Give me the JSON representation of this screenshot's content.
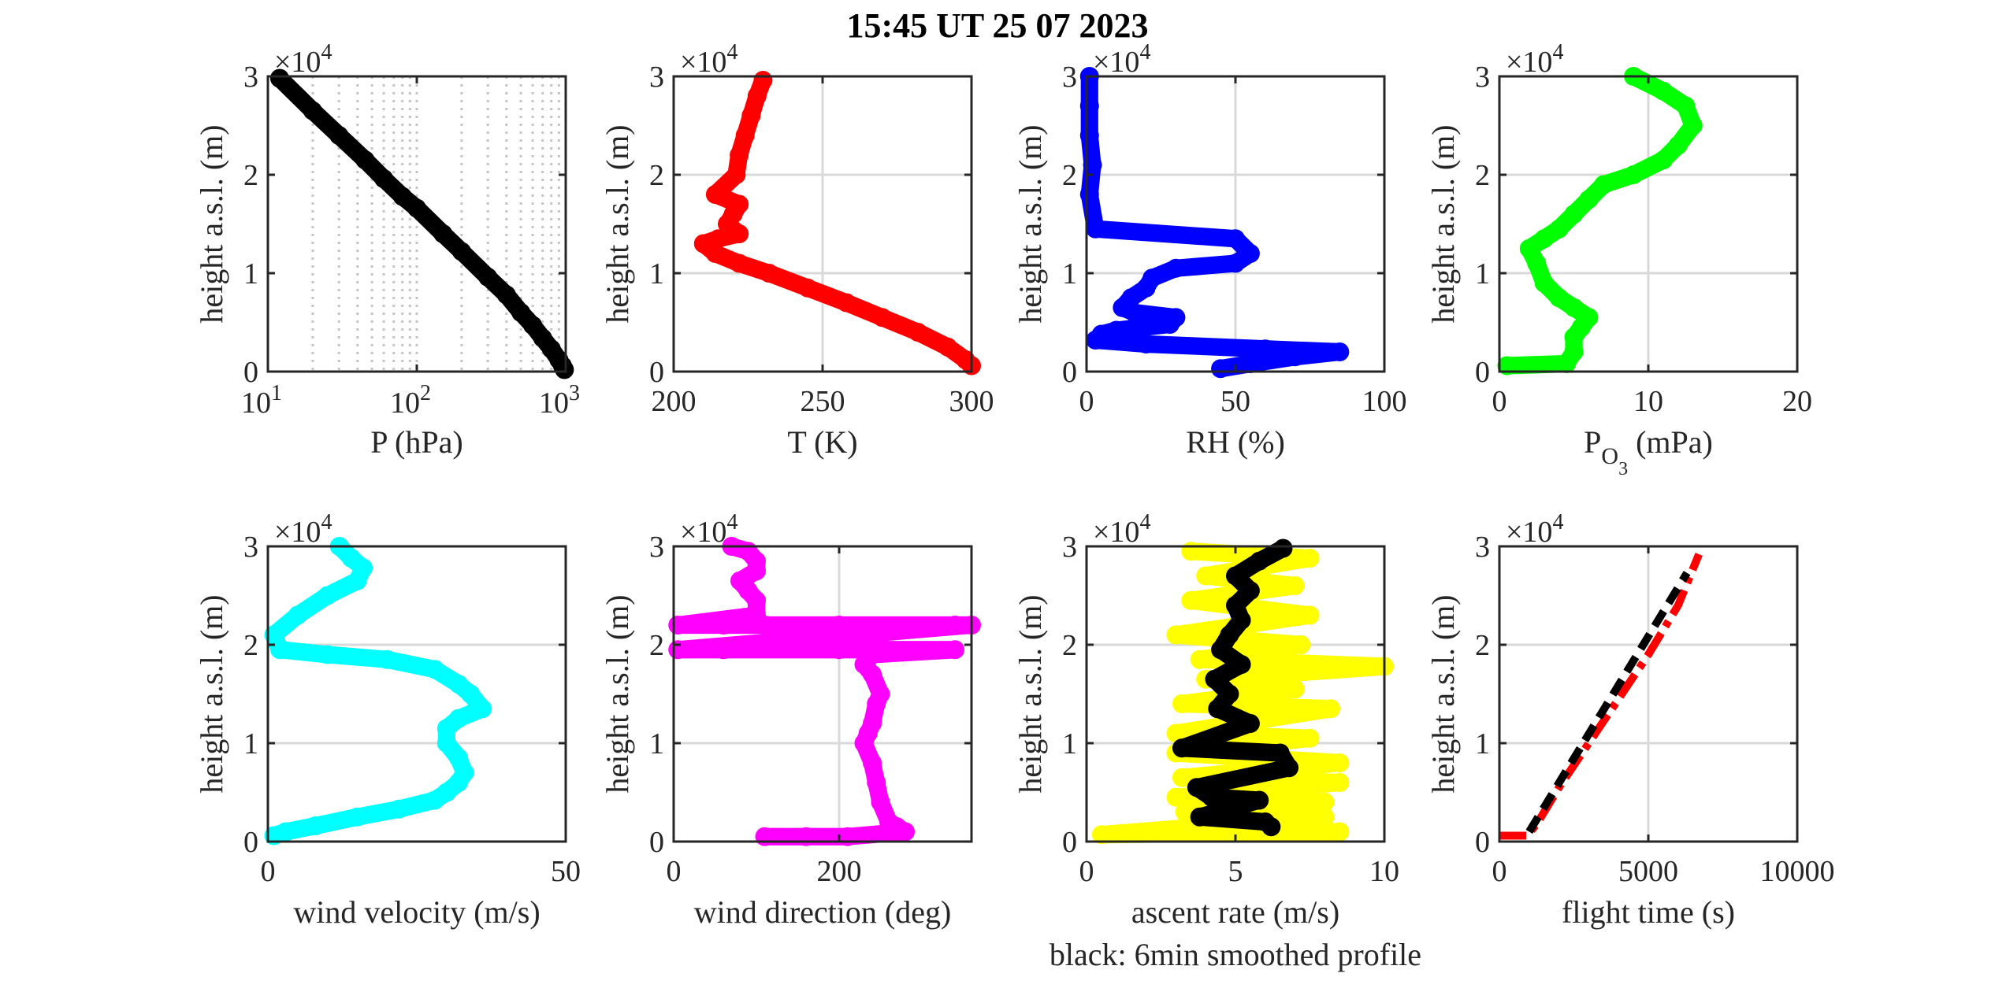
{
  "title": "15:45 UT  25 07 2023",
  "note": "black: 6min smoothed profile",
  "exponent": {
    "base": "×10",
    "power": "4"
  },
  "chart_data": [
    {
      "id": "pressure",
      "type": "scatter",
      "xlabel": "P (hPa)",
      "ylabel": "height a.s.l. (m)",
      "xscale": "log",
      "xlim": [
        10,
        1000
      ],
      "ylim": [
        0,
        30000
      ],
      "xticks": [
        {
          "v": 10,
          "b": "10",
          "e": "1"
        },
        {
          "v": 100,
          "b": "10",
          "e": "2"
        },
        {
          "v": 1000,
          "b": "10",
          "e": "3"
        }
      ],
      "yticks": [
        {
          "v": 0,
          "l": "0"
        },
        {
          "v": 10000,
          "l": "1"
        },
        {
          "v": 20000,
          "l": "2"
        },
        {
          "v": 30000,
          "l": "3"
        }
      ],
      "grid": "log-minor-dotted",
      "series": [
        {
          "color": "#000000",
          "marker_size": 12,
          "x": [
            12,
            20,
            30,
            45,
            60,
            80,
            100,
            150,
            200,
            300,
            400,
            500,
            600,
            700,
            800,
            900,
            950,
            980
          ],
          "y": [
            29800,
            26500,
            24000,
            21500,
            19600,
            17800,
            16600,
            14000,
            12200,
            9600,
            7800,
            6000,
            4700,
            3400,
            2300,
            1200,
            600,
            200
          ]
        }
      ]
    },
    {
      "id": "temperature",
      "type": "scatter",
      "xlabel": "T (K)",
      "ylabel": "height a.s.l. (m)",
      "xlim": [
        200,
        300
      ],
      "ylim": [
        0,
        30000
      ],
      "xticks": [
        {
          "v": 200,
          "l": "200"
        },
        {
          "v": 250,
          "l": "250"
        },
        {
          "v": 300,
          "l": "300"
        }
      ],
      "yticks": [
        {
          "v": 0,
          "l": "0"
        },
        {
          "v": 10000,
          "l": "1"
        },
        {
          "v": 20000,
          "l": "2"
        },
        {
          "v": 30000,
          "l": "3"
        }
      ],
      "grid": "major",
      "series": [
        {
          "color": "#ff0000",
          "marker_size": 12,
          "x": [
            230,
            228,
            226,
            224,
            222,
            221,
            214,
            222,
            220,
            218,
            222,
            215,
            210,
            214,
            222,
            232,
            245,
            258,
            270,
            282,
            292,
            298,
            300
          ],
          "y": [
            29600,
            28000,
            26000,
            24000,
            22000,
            20000,
            18000,
            17000,
            16000,
            15000,
            14000,
            13500,
            13000,
            12000,
            11000,
            10000,
            8500,
            7000,
            5500,
            4000,
            2500,
            1200,
            600
          ]
        }
      ]
    },
    {
      "id": "rh",
      "type": "scatter",
      "xlabel": "RH (%)",
      "ylabel": "height a.s.l. (m)",
      "xlim": [
        0,
        100
      ],
      "ylim": [
        0,
        30000
      ],
      "xticks": [
        {
          "v": 0,
          "l": "0"
        },
        {
          "v": 50,
          "l": "50"
        },
        {
          "v": 100,
          "l": "100"
        }
      ],
      "yticks": [
        {
          "v": 0,
          "l": "0"
        },
        {
          "v": 10000,
          "l": "1"
        },
        {
          "v": 20000,
          "l": "2"
        },
        {
          "v": 30000,
          "l": "3"
        }
      ],
      "grid": "major",
      "series": [
        {
          "color": "#0000ff",
          "marker_size": 12,
          "x": [
            1,
            1,
            1,
            2,
            1,
            3,
            50,
            55,
            50,
            30,
            22,
            20,
            15,
            12,
            16,
            30,
            28,
            10,
            5,
            3,
            20,
            60,
            85,
            70,
            55,
            45
          ],
          "y": [
            30000,
            27000,
            24000,
            21000,
            18000,
            14500,
            13500,
            12000,
            11000,
            10500,
            9500,
            8500,
            7500,
            6500,
            6000,
            5500,
            4800,
            4200,
            3800,
            3200,
            2800,
            2300,
            2000,
            1500,
            800,
            300
          ]
        }
      ]
    },
    {
      "id": "ozone",
      "type": "scatter",
      "xlabel": "P",
      "xlabel_sub": "O",
      "xlabel_subsub": "3",
      "xlabel_unit": "(mPa)",
      "ylabel": "height a.s.l. (m)",
      "xlim": [
        0,
        20
      ],
      "ylim": [
        0,
        30000
      ],
      "xticks": [
        {
          "v": 0,
          "l": "0"
        },
        {
          "v": 10,
          "l": "10"
        },
        {
          "v": 20,
          "l": "20"
        }
      ],
      "yticks": [
        {
          "v": 0,
          "l": "0"
        },
        {
          "v": 10000,
          "l": "1"
        },
        {
          "v": 20000,
          "l": "2"
        },
        {
          "v": 30000,
          "l": "3"
        }
      ],
      "grid": "major",
      "series": [
        {
          "color": "#00ff00",
          "marker_size": 12,
          "x": [
            9,
            11,
            12.5,
            13,
            12,
            11,
            9,
            7,
            6,
            5,
            4,
            3,
            2,
            2.5,
            3,
            4,
            5,
            6,
            5.5,
            5,
            5,
            4.5,
            0.5
          ],
          "y": [
            30000,
            28500,
            27000,
            25000,
            23000,
            21500,
            20000,
            19000,
            17500,
            16000,
            14500,
            13500,
            12500,
            11000,
            9000,
            7500,
            6500,
            5500,
            4500,
            3500,
            2000,
            800,
            600
          ]
        }
      ]
    },
    {
      "id": "wind_velocity",
      "type": "scatter",
      "xlabel": "wind velocity (m/s)",
      "ylabel": "height a.s.l. (m)",
      "xlim": [
        0,
        50
      ],
      "ylim": [
        0,
        30000
      ],
      "xticks": [
        {
          "v": 0,
          "l": "0"
        },
        {
          "v": 50,
          "l": "50"
        }
      ],
      "yticks": [
        {
          "v": 0,
          "l": "0"
        },
        {
          "v": 10000,
          "l": "1"
        },
        {
          "v": 20000,
          "l": "2"
        },
        {
          "v": 30000,
          "l": "3"
        }
      ],
      "grid": "major",
      "series": [
        {
          "color": "#00ffff",
          "marker_size": 12,
          "x": [
            12,
            14,
            16,
            15,
            10,
            5,
            1,
            2,
            10,
            20,
            28,
            32,
            34,
            36,
            32,
            30,
            30,
            32,
            33,
            32,
            30,
            28,
            22,
            15,
            8,
            3,
            1
          ],
          "y": [
            30000,
            28800,
            27800,
            26500,
            25000,
            23000,
            21000,
            19500,
            19000,
            18500,
            17500,
            16000,
            15000,
            13500,
            12500,
            11500,
            10000,
            8500,
            7000,
            6000,
            5000,
            4200,
            3300,
            2500,
            1600,
            1000,
            600
          ]
        }
      ]
    },
    {
      "id": "wind_direction",
      "type": "scatter",
      "xlabel": "wind direction (deg)",
      "ylabel": "height a.s.l. (m)",
      "xlim": [
        0,
        360
      ],
      "ylim": [
        0,
        30000
      ],
      "xticks": [
        {
          "v": 0,
          "l": "0"
        },
        {
          "v": 200,
          "l": "200"
        }
      ],
      "yticks": [
        {
          "v": 0,
          "l": "0"
        },
        {
          "v": 10000,
          "l": "1"
        },
        {
          "v": 20000,
          "l": "2"
        },
        {
          "v": 30000,
          "l": "3"
        }
      ],
      "grid": "major",
      "series": [
        {
          "color": "#ff00ff",
          "marker_size": 12,
          "x": [
            70,
            90,
            100,
            100,
            80,
            90,
            100,
            100,
            5,
            60,
            110,
            200,
            340,
            360,
            5,
            60,
            200,
            340,
            240,
            230,
            240,
            250,
            245,
            240,
            235,
            230,
            240,
            245,
            250,
            260,
            270,
            280,
            210,
            160,
            110
          ],
          "y": [
            30000,
            29500,
            28500,
            27500,
            26500,
            25500,
            24500,
            23000,
            22000,
            22000,
            22000,
            22000,
            22000,
            22000,
            19500,
            19500,
            19500,
            19500,
            19000,
            18000,
            17000,
            15000,
            14000,
            12000,
            11000,
            10000,
            8000,
            6000,
            4000,
            2000,
            1500,
            1000,
            500,
            500,
            500
          ]
        }
      ]
    },
    {
      "id": "ascent_rate",
      "type": "scatter",
      "xlabel": "ascent rate (m/s)",
      "xlabel2": "black: 6min smoothed profile",
      "ylabel": "height a.s.l. (m)",
      "xlim": [
        0,
        10
      ],
      "ylim": [
        0,
        30000
      ],
      "xticks": [
        {
          "v": 0,
          "l": "0"
        },
        {
          "v": 5,
          "l": "5"
        },
        {
          "v": 10,
          "l": "10"
        }
      ],
      "yticks": [
        {
          "v": 0,
          "l": "0"
        },
        {
          "v": 10000,
          "l": "1"
        },
        {
          "v": 20000,
          "l": "2"
        },
        {
          "v": 30000,
          "l": "3"
        }
      ],
      "grid": "major",
      "series": [
        {
          "color": "#ffff00",
          "marker_size": 12,
          "x": [
            3.5,
            7.5,
            4,
            7,
            3.5,
            7.5,
            3,
            7.2,
            3.8,
            10,
            4,
            7,
            3.2,
            8.2,
            3,
            7.5,
            3,
            8.5,
            3.2,
            8.5,
            3,
            8,
            3.3,
            8,
            0.5,
            8.5
          ],
          "y": [
            29500,
            28800,
            27000,
            26000,
            24500,
            23000,
            21000,
            20000,
            18500,
            17800,
            16500,
            15500,
            14000,
            13500,
            11000,
            10500,
            9000,
            8000,
            6500,
            6000,
            4500,
            4000,
            3000,
            2500,
            700,
            1000
          ]
        },
        {
          "color": "#000000",
          "marker_size": 12,
          "x": [
            6.6,
            5.8,
            5,
            5.5,
            5,
            5.2,
            4.8,
            4.5,
            5.2,
            4.3,
            4.8,
            4.4,
            5.5,
            3.2,
            6.5,
            6.8,
            3.7,
            4.2,
            5.8,
            3.8,
            6,
            6.2
          ],
          "y": [
            29800,
            28500,
            27000,
            25500,
            24000,
            22500,
            21000,
            19500,
            18000,
            16500,
            15000,
            13500,
            12000,
            9500,
            9000,
            7500,
            5500,
            4500,
            4200,
            2500,
            2000,
            1500
          ]
        }
      ]
    },
    {
      "id": "flight_time",
      "type": "line",
      "xlabel": "flight time (s)",
      "ylabel": "height a.s.l. (m)",
      "xlim": [
        0,
        10000
      ],
      "ylim": [
        0,
        30000
      ],
      "xticks": [
        {
          "v": 0,
          "l": "0"
        },
        {
          "v": 5000,
          "l": "5000"
        },
        {
          "v": 10000,
          "l": "10000"
        }
      ],
      "yticks": [
        {
          "v": 0,
          "l": "0"
        },
        {
          "v": 10000,
          "l": "1"
        },
        {
          "v": 20000,
          "l": "2"
        },
        {
          "v": 30000,
          "l": "3"
        }
      ],
      "grid": "major",
      "series": [
        {
          "color": "#ff0000",
          "line_style": "dash-dot",
          "x": [
            0,
            950,
            1300,
            2000,
            3000,
            4000,
            5000,
            6000,
            6700
          ],
          "y": [
            600,
            600,
            2000,
            5500,
            10000,
            14500,
            19000,
            24000,
            29200
          ]
        },
        {
          "color": "#000000",
          "line_style": "dashed",
          "x": [
            1000,
            6300
          ],
          "y": [
            1000,
            27300
          ]
        }
      ]
    }
  ]
}
